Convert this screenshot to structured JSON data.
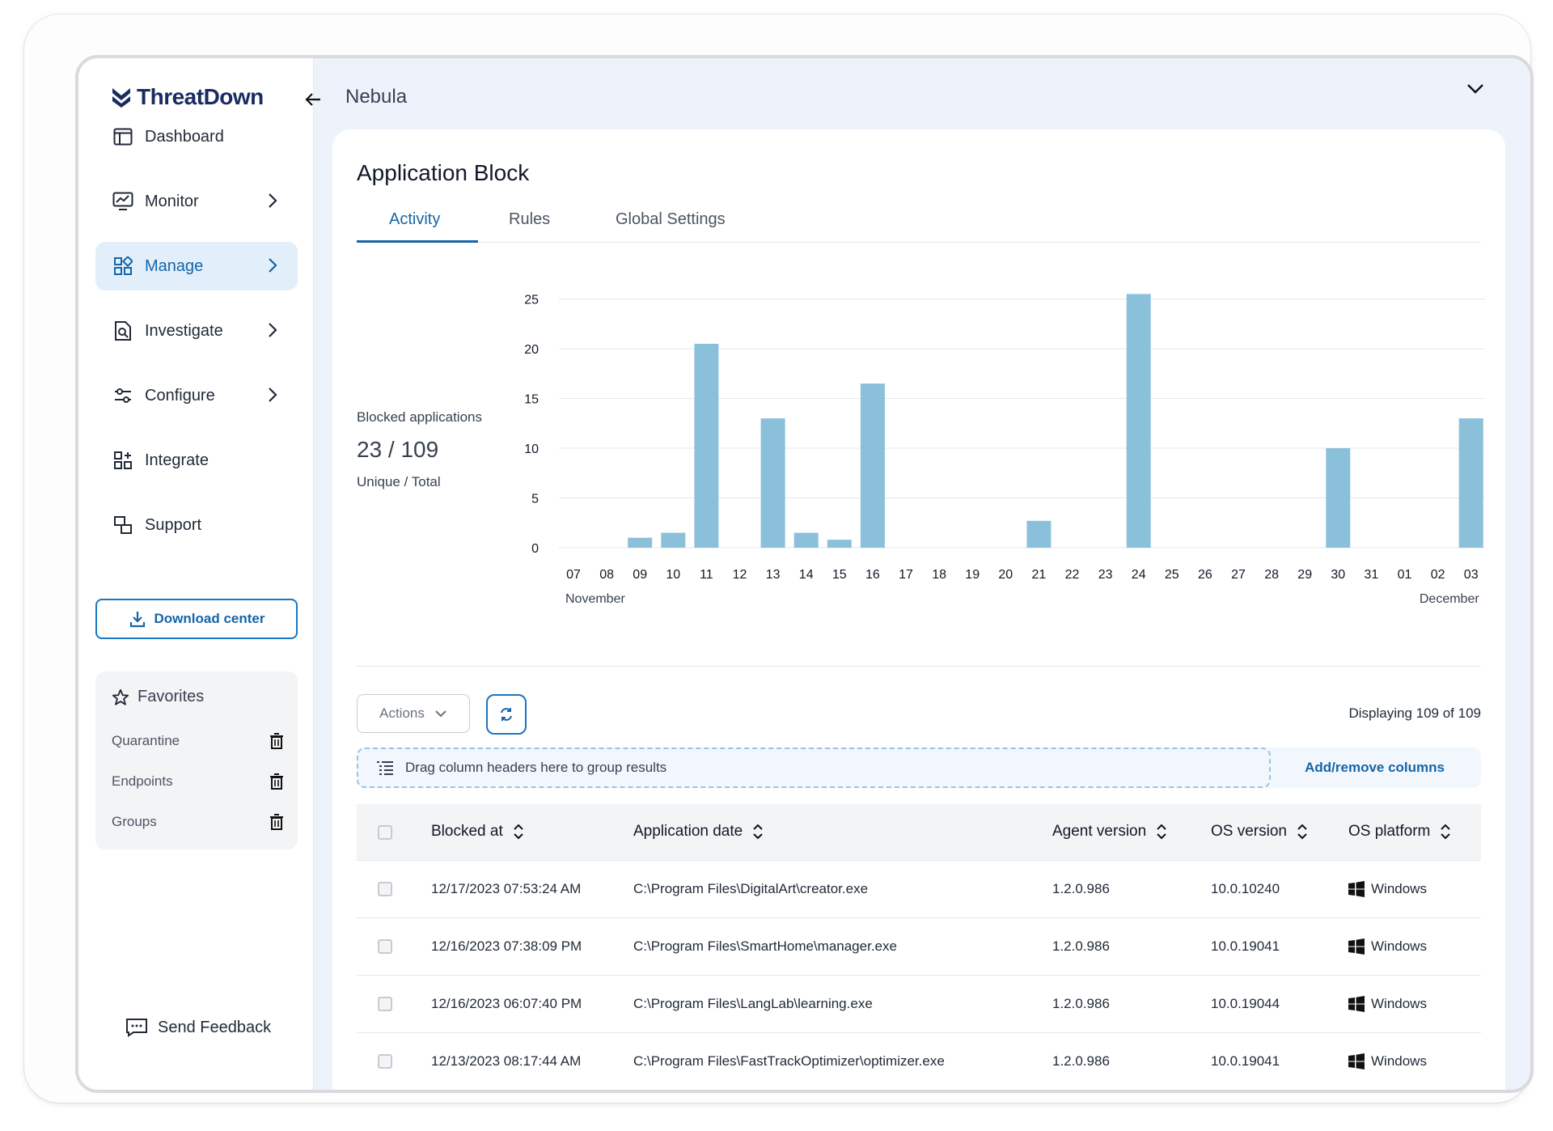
{
  "app": {
    "brand": "ThreatDown",
    "breadcrumb": "Nebula"
  },
  "sidebar": {
    "items": [
      {
        "label": "Dashboard",
        "icon": "dashboard-icon",
        "has_chevron": false
      },
      {
        "label": "Monitor",
        "icon": "monitor-icon",
        "has_chevron": true
      },
      {
        "label": "Manage",
        "icon": "manage-icon",
        "has_chevron": true,
        "active": true
      },
      {
        "label": "Investigate",
        "icon": "investigate-icon",
        "has_chevron": true
      },
      {
        "label": "Configure",
        "icon": "configure-icon",
        "has_chevron": true
      },
      {
        "label": "Integrate",
        "icon": "integrate-icon",
        "has_chevron": false
      },
      {
        "label": "Support",
        "icon": "support-icon",
        "has_chevron": false
      }
    ],
    "download_label": "Download center",
    "favorites": {
      "title": "Favorites",
      "items": [
        "Quarantine",
        "Endpoints",
        "Groups"
      ]
    },
    "feedback_label": "Send Feedback"
  },
  "page": {
    "title": "Application Block",
    "tabs": [
      "Activity",
      "Rules",
      "Global Settings"
    ],
    "active_tab": "Activity"
  },
  "stats": {
    "label": "Blocked applications",
    "value": "23 / 109",
    "sub": "Unique / Total"
  },
  "chart_data": {
    "type": "bar",
    "categories": [
      "07",
      "08",
      "09",
      "10",
      "11",
      "12",
      "13",
      "14",
      "15",
      "16",
      "17",
      "18",
      "19",
      "20",
      "21",
      "22",
      "23",
      "24",
      "25",
      "26",
      "27",
      "28",
      "29",
      "30",
      "31",
      "01",
      "02",
      "03"
    ],
    "values": [
      0,
      0,
      1,
      1.5,
      20.5,
      0,
      13,
      1.5,
      0.8,
      16.5,
      0,
      0,
      0,
      0,
      2.7,
      0,
      0,
      25.5,
      0,
      0,
      0,
      0,
      0,
      10,
      0,
      0,
      0,
      13
    ],
    "month_labels": [
      "November",
      "December"
    ],
    "yticks": [
      0,
      5,
      10,
      15,
      20,
      25
    ],
    "ylim": [
      0,
      27
    ],
    "bar_color": "#8bc0db",
    "grid": true
  },
  "table": {
    "actions_label": "Actions",
    "displaying": "Displaying 109 of 109",
    "group_hint": "Drag column headers here to group results",
    "add_remove": "Add/remove columns",
    "columns": [
      "Blocked at",
      "Application date",
      "Agent version",
      "OS version",
      "OS platform"
    ],
    "rows": [
      {
        "blocked_at": "12/17/2023 07:53:24 AM",
        "app": "C:\\Program Files\\DigitalArt\\creator.exe",
        "agent": "1.2.0.986",
        "os_version": "10.0.10240",
        "platform": "Windows"
      },
      {
        "blocked_at": "12/16/2023 07:38:09 PM",
        "app": "C:\\Program Files\\SmartHome\\manager.exe",
        "agent": "1.2.0.986",
        "os_version": "10.0.19041",
        "platform": "Windows"
      },
      {
        "blocked_at": "12/16/2023 06:07:40 PM",
        "app": "C:\\Program Files\\LangLab\\learning.exe",
        "agent": "1.2.0.986",
        "os_version": "10.0.19044",
        "platform": "Windows"
      },
      {
        "blocked_at": "12/13/2023 08:17:44 AM",
        "app": "C:\\Program Files\\FastTrackOptimizer\\optimizer.exe",
        "agent": "1.2.0.986",
        "os_version": "10.0.19041",
        "platform": "Windows"
      }
    ]
  },
  "colors": {
    "accent": "#1565a8",
    "active_nav_bg": "#e2effb",
    "screen_bg": "#edf2fb"
  }
}
